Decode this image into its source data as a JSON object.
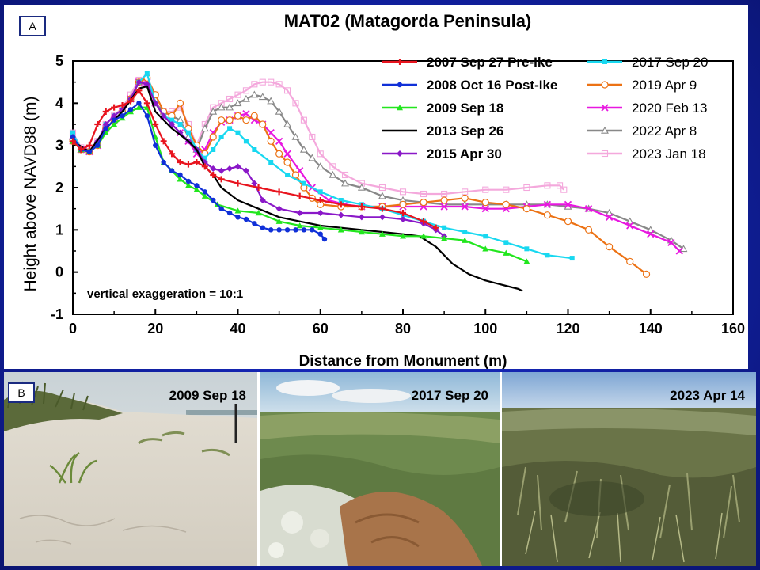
{
  "chart_data": {
    "type": "line",
    "title": "MAT02 (Matagorda Peninsula)",
    "panel_label": "A",
    "xlabel": "Distance from Monument (m)",
    "ylabel": "Height above NAVD88 (m)",
    "xlim": [
      0,
      160
    ],
    "ylim": [
      -1,
      5
    ],
    "xticks": [
      "0",
      "20",
      "40",
      "60",
      "80",
      "100",
      "120",
      "140",
      "160"
    ],
    "yticks": [
      "-1",
      "0",
      "1",
      "2",
      "3",
      "4",
      "5"
    ],
    "annotation": "vertical exaggeration = 10:1",
    "legend_position": "top-right",
    "series": [
      {
        "name": "2007 Sep 27 Pre-Ike",
        "color": "#e8141e",
        "marker": "plus",
        "bold": true,
        "x": [
          0,
          2,
          4,
          6,
          8,
          10,
          12,
          14,
          16,
          18,
          20,
          22,
          24,
          26,
          28,
          30,
          32,
          34,
          36,
          40,
          45,
          50,
          55,
          60,
          65,
          70,
          75,
          80,
          85,
          88
        ],
        "y": [
          3.1,
          2.9,
          3.0,
          3.5,
          3.8,
          3.9,
          3.95,
          4.05,
          4.3,
          4.0,
          3.5,
          3.1,
          2.8,
          2.6,
          2.55,
          2.6,
          2.5,
          2.3,
          2.2,
          2.1,
          2.0,
          1.9,
          1.8,
          1.7,
          1.6,
          1.55,
          1.5,
          1.4,
          1.2,
          1.05
        ]
      },
      {
        "name": "2008 Oct 16 Post-Ike",
        "color": "#1030d8",
        "marker": "circle",
        "bold": true,
        "x": [
          0,
          2,
          4,
          6,
          8,
          10,
          12,
          14,
          16,
          18,
          20,
          22,
          24,
          26,
          28,
          30,
          32,
          34,
          36,
          38,
          40,
          42,
          44,
          46,
          48,
          50,
          52,
          54,
          56,
          58,
          60,
          61
        ],
        "y": [
          3.2,
          2.9,
          2.85,
          3.0,
          3.4,
          3.6,
          3.7,
          3.85,
          4.0,
          3.7,
          3.0,
          2.6,
          2.4,
          2.3,
          2.15,
          2.05,
          1.9,
          1.7,
          1.5,
          1.4,
          1.3,
          1.25,
          1.15,
          1.05,
          1.0,
          1.0,
          1.0,
          1.0,
          1.0,
          1.0,
          0.9,
          0.78
        ]
      },
      {
        "name": "2009 Sep 18",
        "color": "#22e61e",
        "marker": "triangle",
        "bold": true,
        "x": [
          0,
          2,
          4,
          6,
          8,
          10,
          12,
          14,
          16,
          18,
          20,
          22,
          24,
          26,
          28,
          30,
          32,
          35,
          40,
          45,
          50,
          55,
          60,
          65,
          70,
          75,
          80,
          85,
          90,
          95,
          100,
          105,
          110
        ],
        "y": [
          3.1,
          2.9,
          2.85,
          3.0,
          3.3,
          3.5,
          3.65,
          3.8,
          3.9,
          3.9,
          3.2,
          2.6,
          2.4,
          2.2,
          2.05,
          1.95,
          1.8,
          1.6,
          1.45,
          1.4,
          1.2,
          1.1,
          1.05,
          1.0,
          0.95,
          0.9,
          0.85,
          0.85,
          0.8,
          0.75,
          0.55,
          0.45,
          0.25
        ]
      },
      {
        "name": "2013 Sep 26",
        "color": "#000000",
        "marker": "none",
        "bold": true,
        "x": [
          0,
          4,
          8,
          12,
          16,
          18,
          20,
          24,
          28,
          30,
          32,
          34,
          36,
          40,
          45,
          50,
          55,
          60,
          65,
          70,
          75,
          80,
          84,
          88,
          92,
          96,
          100,
          104,
          108,
          109
        ],
        "y": [
          3.1,
          2.85,
          3.4,
          3.8,
          4.35,
          4.4,
          3.8,
          3.4,
          3.1,
          2.9,
          2.5,
          2.3,
          2.0,
          1.7,
          1.5,
          1.3,
          1.2,
          1.1,
          1.05,
          1.0,
          0.95,
          0.9,
          0.85,
          0.6,
          0.2,
          -0.05,
          -0.2,
          -0.3,
          -0.4,
          -0.45
        ]
      },
      {
        "name": "2015 Apr 30",
        "color": "#8a18c8",
        "marker": "diamond",
        "bold": true,
        "x": [
          0,
          2,
          4,
          6,
          8,
          10,
          12,
          14,
          16,
          18,
          20,
          22,
          24,
          26,
          28,
          30,
          32,
          34,
          36,
          38,
          40,
          42,
          44,
          46,
          50,
          55,
          60,
          65,
          70,
          75,
          80,
          85,
          88,
          90
        ],
        "y": [
          3.2,
          2.9,
          2.85,
          3.1,
          3.5,
          3.7,
          3.85,
          4.1,
          4.5,
          4.45,
          4.0,
          3.7,
          3.5,
          3.3,
          3.1,
          2.9,
          2.6,
          2.45,
          2.4,
          2.45,
          2.5,
          2.4,
          2.1,
          1.7,
          1.5,
          1.4,
          1.4,
          1.35,
          1.3,
          1.3,
          1.25,
          1.15,
          1.0,
          0.85
        ]
      },
      {
        "name": "2017 Sep 20",
        "color": "#18d8f0",
        "marker": "square",
        "bold": false,
        "x": [
          0,
          2,
          4,
          6,
          8,
          10,
          12,
          14,
          16,
          18,
          20,
          22,
          24,
          26,
          28,
          30,
          32,
          34,
          36,
          38,
          40,
          42,
          44,
          48,
          52,
          56,
          60,
          65,
          70,
          75,
          80,
          85,
          90,
          95,
          100,
          105,
          110,
          115,
          121
        ],
        "y": [
          3.3,
          2.9,
          2.85,
          3.0,
          3.5,
          3.7,
          3.85,
          4.1,
          4.5,
          4.7,
          4.0,
          3.7,
          3.6,
          3.5,
          3.3,
          2.9,
          2.7,
          2.9,
          3.2,
          3.4,
          3.3,
          3.1,
          2.9,
          2.6,
          2.3,
          2.1,
          1.9,
          1.7,
          1.6,
          1.5,
          1.35,
          1.2,
          1.05,
          0.95,
          0.85,
          0.7,
          0.55,
          0.4,
          0.33
        ]
      },
      {
        "name": "2019 Apr 9",
        "color": "#ec7214",
        "marker": "circle-open",
        "bold": false,
        "x": [
          0,
          2,
          4,
          6,
          8,
          10,
          12,
          14,
          16,
          18,
          20,
          22,
          24,
          26,
          28,
          30,
          32,
          34,
          36,
          38,
          40,
          42,
          44,
          46,
          48,
          50,
          52,
          54,
          56,
          58,
          60,
          65,
          70,
          75,
          80,
          85,
          90,
          95,
          100,
          105,
          110,
          115,
          120,
          125,
          130,
          135,
          139
        ],
        "y": [
          3.1,
          2.9,
          2.85,
          3.0,
          3.4,
          3.6,
          3.8,
          4.1,
          4.5,
          4.6,
          4.2,
          3.8,
          3.7,
          4.0,
          3.4,
          3.0,
          2.8,
          3.2,
          3.6,
          3.6,
          3.7,
          3.6,
          3.7,
          3.5,
          3.1,
          2.8,
          2.6,
          2.3,
          2.0,
          1.75,
          1.6,
          1.55,
          1.55,
          1.55,
          1.6,
          1.65,
          1.7,
          1.75,
          1.65,
          1.6,
          1.5,
          1.35,
          1.2,
          1.0,
          0.6,
          0.25,
          -0.05
        ]
      },
      {
        "name": "2020 Feb 13",
        "color": "#e818e0",
        "marker": "x",
        "bold": false,
        "x": [
          0,
          2,
          4,
          6,
          8,
          10,
          12,
          14,
          16,
          18,
          20,
          22,
          24,
          26,
          28,
          30,
          32,
          34,
          36,
          38,
          40,
          42,
          44,
          46,
          48,
          50,
          52,
          55,
          58,
          62,
          66,
          70,
          75,
          80,
          85,
          90,
          95,
          100,
          105,
          110,
          115,
          120,
          125,
          130,
          135,
          140,
          145,
          147
        ],
        "y": [
          3.1,
          2.9,
          2.85,
          3.0,
          3.4,
          3.6,
          3.8,
          4.1,
          4.5,
          4.5,
          4.0,
          3.7,
          3.5,
          3.3,
          3.1,
          2.8,
          2.9,
          3.3,
          3.55,
          3.6,
          3.7,
          3.75,
          3.6,
          3.5,
          3.3,
          3.1,
          2.8,
          2.4,
          2.0,
          1.7,
          1.6,
          1.55,
          1.55,
          1.55,
          1.55,
          1.55,
          1.55,
          1.5,
          1.5,
          1.55,
          1.6,
          1.6,
          1.5,
          1.3,
          1.1,
          0.9,
          0.7,
          0.5
        ]
      },
      {
        "name": "2022 Apr 8",
        "color": "#888888",
        "marker": "triangle-open",
        "bold": false,
        "x": [
          0,
          2,
          4,
          6,
          8,
          10,
          12,
          14,
          16,
          18,
          20,
          22,
          24,
          26,
          28,
          30,
          32,
          34,
          36,
          38,
          40,
          42,
          44,
          46,
          48,
          50,
          52,
          54,
          56,
          58,
          60,
          63,
          66,
          70,
          75,
          80,
          85,
          90,
          95,
          100,
          105,
          110,
          115,
          120,
          125,
          130,
          135,
          140,
          145,
          148
        ],
        "y": [
          3.2,
          2.9,
          2.85,
          3.0,
          3.4,
          3.6,
          3.8,
          4.1,
          4.5,
          4.5,
          4.0,
          3.8,
          3.7,
          3.6,
          3.2,
          2.9,
          3.4,
          3.8,
          3.9,
          3.9,
          4.0,
          4.1,
          4.2,
          4.15,
          4.05,
          3.8,
          3.5,
          3.2,
          2.9,
          2.7,
          2.5,
          2.3,
          2.1,
          2.0,
          1.8,
          1.7,
          1.65,
          1.6,
          1.6,
          1.6,
          1.6,
          1.6,
          1.6,
          1.55,
          1.5,
          1.4,
          1.2,
          1.0,
          0.75,
          0.55
        ]
      },
      {
        "name": "2023 Jan 18",
        "color": "#f4a8dc",
        "marker": "square-open",
        "bold": false,
        "x": [
          0,
          2,
          4,
          6,
          8,
          10,
          12,
          14,
          16,
          18,
          20,
          22,
          24,
          26,
          28,
          30,
          32,
          34,
          36,
          38,
          40,
          42,
          44,
          46,
          48,
          50,
          52,
          54,
          56,
          58,
          60,
          63,
          66,
          70,
          75,
          80,
          85,
          90,
          95,
          100,
          105,
          110,
          115,
          118,
          119
        ],
        "y": [
          3.3,
          2.95,
          2.9,
          3.1,
          3.5,
          3.7,
          3.9,
          4.2,
          4.55,
          4.6,
          4.2,
          3.8,
          3.8,
          3.9,
          3.5,
          3.0,
          3.5,
          3.9,
          4.0,
          4.1,
          4.2,
          4.3,
          4.45,
          4.5,
          4.5,
          4.45,
          4.3,
          4.0,
          3.6,
          3.2,
          2.8,
          2.5,
          2.3,
          2.1,
          2.0,
          1.9,
          1.85,
          1.85,
          1.9,
          1.95,
          1.95,
          2.0,
          2.05,
          2.05,
          1.95
        ]
      }
    ]
  },
  "photos": {
    "panel_label": "B",
    "items": [
      {
        "label": "2009 Sep 18",
        "icon": "sandy-beach-photo"
      },
      {
        "label": "2017 Sep 20",
        "icon": "vegetated-dune-photo"
      },
      {
        "label": "2023 Apr 14",
        "icon": "dense-grass-photo"
      }
    ]
  }
}
